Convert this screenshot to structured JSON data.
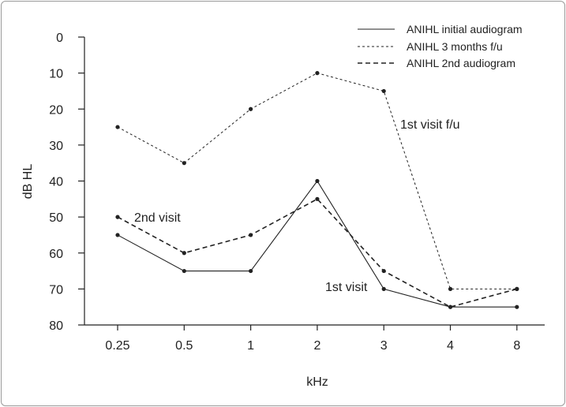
{
  "chart_data": {
    "type": "line",
    "xlabel": "kHz",
    "ylabel": "dB HL",
    "categories": [
      "0.25",
      "0.5",
      "1",
      "2",
      "3",
      "4",
      "8"
    ],
    "ylim": [
      0,
      80
    ],
    "y_inverted": true,
    "yticks": [
      0,
      10,
      20,
      30,
      40,
      50,
      60,
      70,
      80
    ],
    "grid": false,
    "legend_position": "top-right",
    "series": [
      {
        "name": "ANIHL initial audiogram",
        "style": "solid",
        "values": [
          55,
          65,
          65,
          40,
          70,
          75,
          75
        ]
      },
      {
        "name": "ANIHL 3 months f/u",
        "style": "dotted",
        "values": [
          25,
          35,
          20,
          10,
          15,
          70,
          70
        ]
      },
      {
        "name": "ANIHL 2nd audiogram",
        "style": "dashed",
        "values": [
          50,
          60,
          55,
          45,
          65,
          75,
          70
        ]
      }
    ],
    "annotations": [
      {
        "text": "1st visit f/u",
        "series": 1
      },
      {
        "text": "2nd visit",
        "series": 2
      },
      {
        "text": "1st visit",
        "series": 0
      }
    ],
    "colors": {
      "line": "#222222",
      "axis": "#222222"
    }
  }
}
